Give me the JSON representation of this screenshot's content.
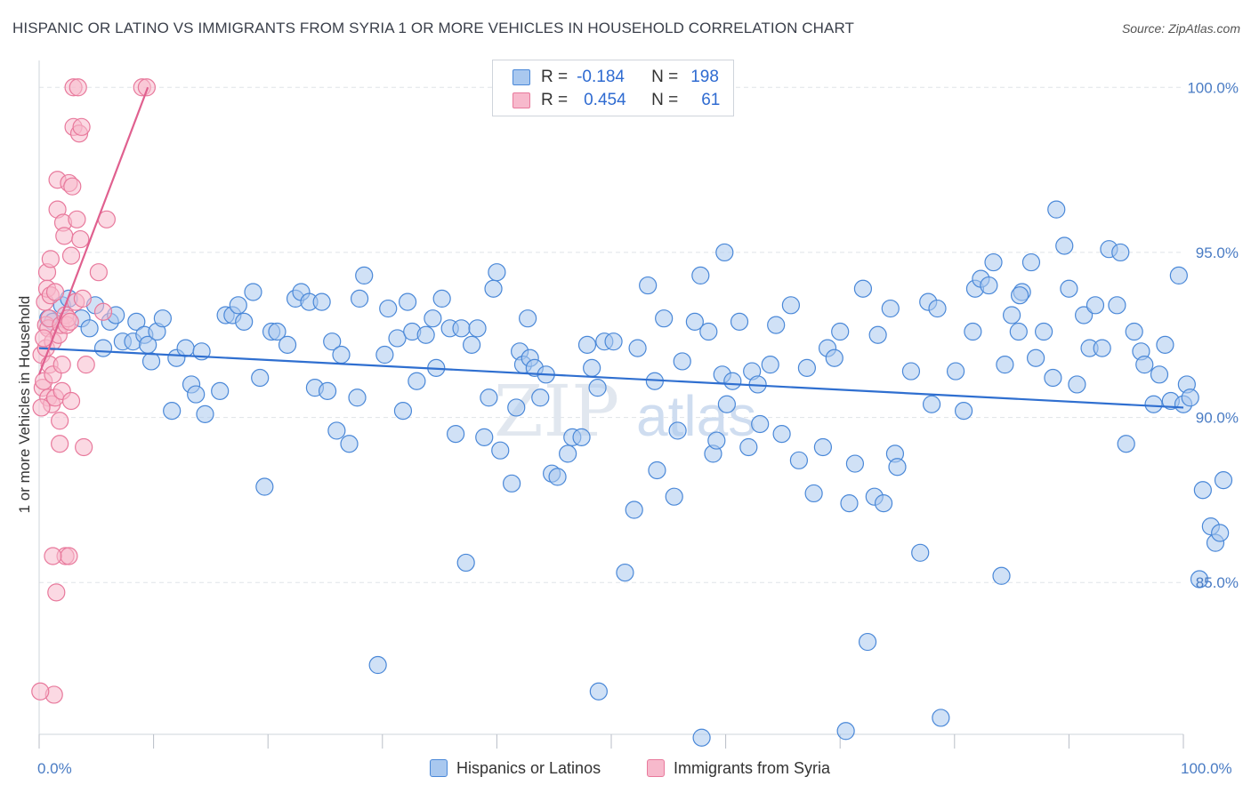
{
  "header": {
    "title": "HISPANIC OR LATINO VS IMMIGRANTS FROM SYRIA 1 OR MORE VEHICLES IN HOUSEHOLD CORRELATION CHART",
    "source": "Source: ZipAtlas.com"
  },
  "legend": {
    "rows": [
      {
        "r_label": "R =",
        "r_value": "-0.184",
        "n_label": "N =",
        "n_value": "198"
      },
      {
        "r_label": "R =",
        "r_value": "0.454",
        "n_label": "N =",
        "n_value": "61"
      }
    ]
  },
  "bottom_legend": {
    "series1": "Hispanics or Latinos",
    "series2": "Immigrants from Syria"
  },
  "axes": {
    "ylabel": "1 or more Vehicles in Household",
    "x_min_label": "0.0%",
    "x_max_label": "100.0%",
    "y_ticks": [
      "100.0%",
      "95.0%",
      "90.0%",
      "85.0%"
    ]
  },
  "watermark": {
    "zip": "ZIP",
    "atlas": "atlas"
  },
  "colors": {
    "blue_fill": "#a9c8ef",
    "blue_stroke": "#4a88d8",
    "blue_line": "#2f6fd0",
    "pink_fill": "#f7b9cc",
    "pink_stroke": "#e8799c",
    "pink_line": "#e0608f",
    "tick_label": "#4a7cc4",
    "grid": "#dfe3e8"
  },
  "chart_data": {
    "type": "scatter",
    "xlim": [
      0,
      100
    ],
    "ylim": [
      80.4,
      100.6
    ],
    "grid": true,
    "legend_position": "top-center",
    "series": [
      {
        "name": "Hispanics or Latinos",
        "color": "#4a88d8",
        "points": [
          [
            0.8,
            93.0
          ],
          [
            1.2,
            92.9
          ],
          [
            2.0,
            93.4
          ],
          [
            2.6,
            93.6
          ],
          [
            3.7,
            93.0
          ],
          [
            4.4,
            92.7
          ],
          [
            4.9,
            93.4
          ],
          [
            5.6,
            92.1
          ],
          [
            6.2,
            92.9
          ],
          [
            6.7,
            93.1
          ],
          [
            7.3,
            92.3
          ],
          [
            8.2,
            92.3
          ],
          [
            8.5,
            92.9
          ],
          [
            9.2,
            92.5
          ],
          [
            9.5,
            92.2
          ],
          [
            9.8,
            91.7
          ],
          [
            10.3,
            92.6
          ],
          [
            10.8,
            93.0
          ],
          [
            11.6,
            90.2
          ],
          [
            12.0,
            91.8
          ],
          [
            12.8,
            92.1
          ],
          [
            13.3,
            91.0
          ],
          [
            13.7,
            90.7
          ],
          [
            14.2,
            92.0
          ],
          [
            14.5,
            90.1
          ],
          [
            15.8,
            90.8
          ],
          [
            16.3,
            93.1
          ],
          [
            16.9,
            93.1
          ],
          [
            17.4,
            93.4
          ],
          [
            17.9,
            92.9
          ],
          [
            18.7,
            93.8
          ],
          [
            19.3,
            91.2
          ],
          [
            19.7,
            87.9
          ],
          [
            20.3,
            92.6
          ],
          [
            20.8,
            92.6
          ],
          [
            21.7,
            92.2
          ],
          [
            22.4,
            93.6
          ],
          [
            22.9,
            93.8
          ],
          [
            23.6,
            93.5
          ],
          [
            24.1,
            90.9
          ],
          [
            24.7,
            93.5
          ],
          [
            25.2,
            90.8
          ],
          [
            25.6,
            92.3
          ],
          [
            26.0,
            89.6
          ],
          [
            26.4,
            91.9
          ],
          [
            27.1,
            89.2
          ],
          [
            27.8,
            90.6
          ],
          [
            28.0,
            93.6
          ],
          [
            28.4,
            94.3
          ],
          [
            29.6,
            82.5
          ],
          [
            30.2,
            91.9
          ],
          [
            30.5,
            93.3
          ],
          [
            31.3,
            92.4
          ],
          [
            31.8,
            90.2
          ],
          [
            32.2,
            93.5
          ],
          [
            32.6,
            92.6
          ],
          [
            33.0,
            91.1
          ],
          [
            33.8,
            92.5
          ],
          [
            34.4,
            93.0
          ],
          [
            34.7,
            91.5
          ],
          [
            35.2,
            93.6
          ],
          [
            35.9,
            92.7
          ],
          [
            36.4,
            89.5
          ],
          [
            36.9,
            92.7
          ],
          [
            37.3,
            85.6
          ],
          [
            37.8,
            92.2
          ],
          [
            38.3,
            92.7
          ],
          [
            38.9,
            89.4
          ],
          [
            39.3,
            90.6
          ],
          [
            39.7,
            93.9
          ],
          [
            40.0,
            94.4
          ],
          [
            40.3,
            89.0
          ],
          [
            41.3,
            88.0
          ],
          [
            41.7,
            90.3
          ],
          [
            42.0,
            92.0
          ],
          [
            42.3,
            91.6
          ],
          [
            42.7,
            93.0
          ],
          [
            42.9,
            91.8
          ],
          [
            43.3,
            91.5
          ],
          [
            43.8,
            90.6
          ],
          [
            44.3,
            91.3
          ],
          [
            44.8,
            88.3
          ],
          [
            45.3,
            88.2
          ],
          [
            46.2,
            88.9
          ],
          [
            46.6,
            89.4
          ],
          [
            47.4,
            89.4
          ],
          [
            47.9,
            92.2
          ],
          [
            48.3,
            91.5
          ],
          [
            48.8,
            90.9
          ],
          [
            48.9,
            81.7
          ],
          [
            49.4,
            92.3
          ],
          [
            50.2,
            92.3
          ],
          [
            51.2,
            85.3
          ],
          [
            52.0,
            87.2
          ],
          [
            52.3,
            92.1
          ],
          [
            53.2,
            94.0
          ],
          [
            53.8,
            91.1
          ],
          [
            54.0,
            88.4
          ],
          [
            54.6,
            93.0
          ],
          [
            55.5,
            87.6
          ],
          [
            55.8,
            89.6
          ],
          [
            56.2,
            91.7
          ],
          [
            57.3,
            92.9
          ],
          [
            57.8,
            94.3
          ],
          [
            57.9,
            80.3
          ],
          [
            58.5,
            92.6
          ],
          [
            58.9,
            88.9
          ],
          [
            59.2,
            89.3
          ],
          [
            59.7,
            91.3
          ],
          [
            59.9,
            95.0
          ],
          [
            60.1,
            90.4
          ],
          [
            60.6,
            91.1
          ],
          [
            61.2,
            92.9
          ],
          [
            62.0,
            89.1
          ],
          [
            62.3,
            91.4
          ],
          [
            62.8,
            91.0
          ],
          [
            63.0,
            89.8
          ],
          [
            63.9,
            91.6
          ],
          [
            64.4,
            92.8
          ],
          [
            64.9,
            89.5
          ],
          [
            65.7,
            93.4
          ],
          [
            66.4,
            88.7
          ],
          [
            67.1,
            91.5
          ],
          [
            67.7,
            87.7
          ],
          [
            68.5,
            89.1
          ],
          [
            68.9,
            92.1
          ],
          [
            69.5,
            91.8
          ],
          [
            70.0,
            92.6
          ],
          [
            70.5,
            80.5
          ],
          [
            70.8,
            87.4
          ],
          [
            71.3,
            88.6
          ],
          [
            72.0,
            93.9
          ],
          [
            72.4,
            83.2
          ],
          [
            73.0,
            87.6
          ],
          [
            73.3,
            92.5
          ],
          [
            73.8,
            87.4
          ],
          [
            74.4,
            93.3
          ],
          [
            74.8,
            88.9
          ],
          [
            75.0,
            88.5
          ],
          [
            76.2,
            91.4
          ],
          [
            77.0,
            85.9
          ],
          [
            77.7,
            93.5
          ],
          [
            78.0,
            90.4
          ],
          [
            78.5,
            93.3
          ],
          [
            78.8,
            80.9
          ],
          [
            80.1,
            91.4
          ],
          [
            80.8,
            90.2
          ],
          [
            81.6,
            92.6
          ],
          [
            81.8,
            93.9
          ],
          [
            82.3,
            94.2
          ],
          [
            83.0,
            94.0
          ],
          [
            83.4,
            94.7
          ],
          [
            84.1,
            85.2
          ],
          [
            84.4,
            91.6
          ],
          [
            85.0,
            93.1
          ],
          [
            85.6,
            92.6
          ],
          [
            85.9,
            93.8
          ],
          [
            85.7,
            93.7
          ],
          [
            86.7,
            94.7
          ],
          [
            87.1,
            91.8
          ],
          [
            87.8,
            92.6
          ],
          [
            88.6,
            91.2
          ],
          [
            88.9,
            96.3
          ],
          [
            89.6,
            95.2
          ],
          [
            90.0,
            93.9
          ],
          [
            90.7,
            91.0
          ],
          [
            91.3,
            93.1
          ],
          [
            91.8,
            92.1
          ],
          [
            92.3,
            93.4
          ],
          [
            92.9,
            92.1
          ],
          [
            93.5,
            95.1
          ],
          [
            94.2,
            93.4
          ],
          [
            94.5,
            95.0
          ],
          [
            95.0,
            89.2
          ],
          [
            95.7,
            92.6
          ],
          [
            96.3,
            92.0
          ],
          [
            96.6,
            91.6
          ],
          [
            97.4,
            90.4
          ],
          [
            97.9,
            91.3
          ],
          [
            98.4,
            92.2
          ],
          [
            98.9,
            90.5
          ],
          [
            99.6,
            94.3
          ],
          [
            100.0,
            90.4
          ],
          [
            100.3,
            91.0
          ],
          [
            100.6,
            90.6
          ],
          [
            101.4,
            85.1
          ],
          [
            101.7,
            87.8
          ],
          [
            102.4,
            86.7
          ],
          [
            102.8,
            86.2
          ],
          [
            103.2,
            86.5
          ],
          [
            103.5,
            88.1
          ]
        ],
        "trend": {
          "x": [
            0,
            100
          ],
          "y": [
            92.1,
            90.3
          ]
        }
      },
      {
        "name": "Immigrants from Syria",
        "color": "#e8799c",
        "points": [
          [
            0.2,
            91.9
          ],
          [
            0.3,
            90.9
          ],
          [
            0.4,
            91.1
          ],
          [
            0.5,
            93.5
          ],
          [
            0.6,
            92.8
          ],
          [
            0.6,
            92.1
          ],
          [
            0.7,
            94.4
          ],
          [
            0.7,
            93.9
          ],
          [
            0.8,
            90.6
          ],
          [
            0.8,
            92.7
          ],
          [
            0.9,
            93.0
          ],
          [
            0.9,
            91.6
          ],
          [
            1.0,
            94.8
          ],
          [
            1.0,
            93.7
          ],
          [
            1.1,
            90.4
          ],
          [
            1.2,
            91.3
          ],
          [
            1.2,
            92.3
          ],
          [
            1.3,
            81.6
          ],
          [
            1.4,
            93.8
          ],
          [
            1.4,
            90.6
          ],
          [
            1.5,
            84.7
          ],
          [
            1.6,
            97.2
          ],
          [
            1.6,
            96.3
          ],
          [
            1.7,
            92.5
          ],
          [
            1.8,
            89.9
          ],
          [
            1.8,
            89.2
          ],
          [
            1.9,
            92.8
          ],
          [
            2.0,
            91.6
          ],
          [
            2.0,
            90.8
          ],
          [
            2.1,
            95.9
          ],
          [
            2.2,
            95.5
          ],
          [
            2.3,
            85.8
          ],
          [
            2.3,
            93.1
          ],
          [
            2.4,
            92.8
          ],
          [
            2.5,
            93.0
          ],
          [
            2.6,
            85.8
          ],
          [
            2.6,
            97.1
          ],
          [
            2.7,
            92.9
          ],
          [
            2.8,
            94.9
          ],
          [
            2.8,
            90.5
          ],
          [
            2.9,
            97.0
          ],
          [
            3.0,
            98.8
          ],
          [
            3.0,
            100.0
          ],
          [
            3.2,
            93.5
          ],
          [
            3.3,
            96.0
          ],
          [
            3.4,
            100.0
          ],
          [
            3.5,
            98.6
          ],
          [
            3.6,
            95.4
          ],
          [
            3.7,
            98.8
          ],
          [
            3.8,
            93.6
          ],
          [
            3.9,
            89.1
          ],
          [
            4.1,
            91.6
          ],
          [
            5.2,
            94.4
          ],
          [
            5.6,
            93.2
          ],
          [
            5.9,
            96.0
          ],
          [
            9.0,
            100.0
          ],
          [
            9.4,
            100.0
          ],
          [
            0.1,
            81.7
          ],
          [
            0.2,
            90.3
          ],
          [
            0.4,
            92.4
          ],
          [
            1.2,
            85.8
          ]
        ],
        "trend": {
          "x": [
            0,
            9.5
          ],
          "y": [
            91.3,
            100.0
          ]
        }
      }
    ]
  }
}
